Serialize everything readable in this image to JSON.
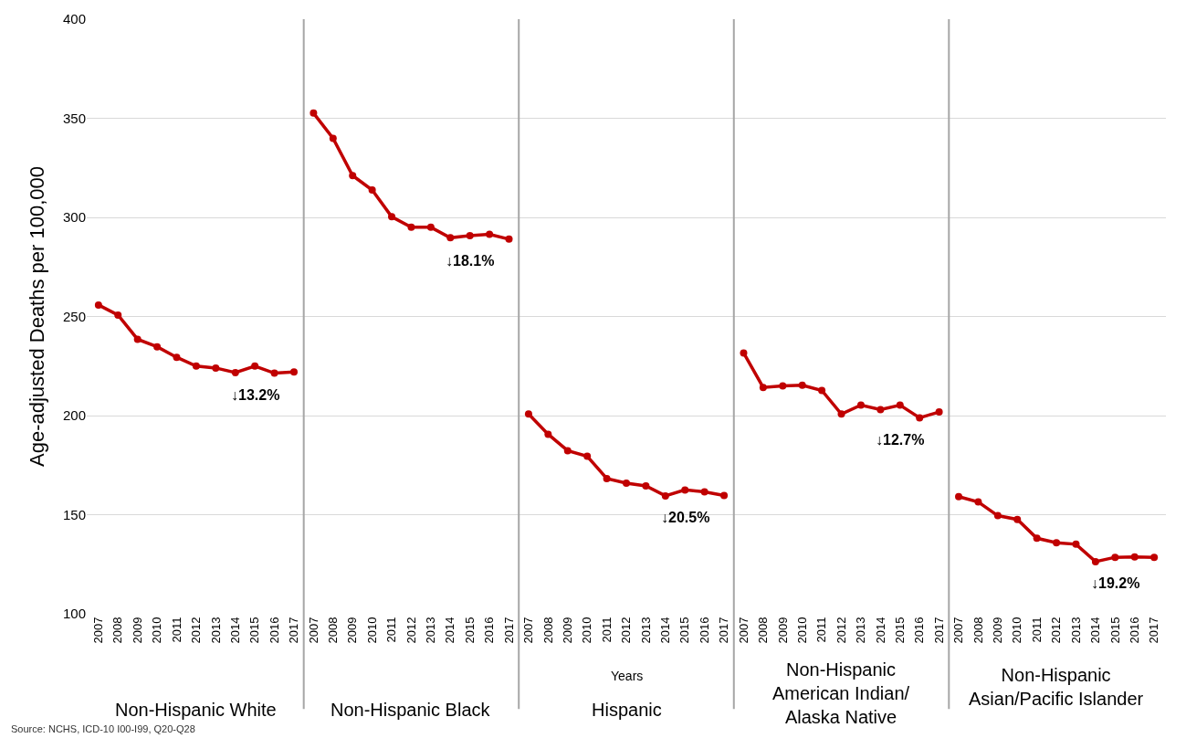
{
  "chart_data": {
    "type": "line",
    "ylabel": "Age-adjusted Deaths per 100,000",
    "categories": [
      "2007",
      "2008",
      "2009",
      "2010",
      "2011",
      "2012",
      "2013",
      "2014",
      "2015",
      "2016",
      "2017",
      "2007",
      "2008",
      "2009",
      "2010",
      "2011",
      "2012",
      "2013",
      "2014",
      "2015",
      "2016",
      "2017",
      "2007",
      "2008",
      "2009",
      "2010",
      "2011",
      "2012",
      "2013",
      "2014",
      "2015",
      "2016",
      "2017",
      "2007",
      "2008",
      "2009",
      "2010",
      "2011",
      "2012",
      "2013",
      "2014",
      "2015",
      "2016",
      "2017",
      "2007",
      "2008",
      "2009",
      "2010",
      "2011",
      "2012",
      "2013",
      "2014",
      "2015",
      "2016",
      "2017"
    ],
    "series": [
      {
        "color": "#c00000",
        "values": [
          255.8,
          250.7,
          238.5,
          234.7,
          229.4,
          225,
          224,
          221.7,
          225,
          221.4,
          222,
          null,
          null,
          null,
          null,
          null,
          null,
          null,
          null,
          null,
          null,
          null,
          null,
          null,
          null,
          null,
          null,
          null,
          null,
          null,
          null,
          null,
          null,
          null,
          null,
          null,
          null,
          null,
          null,
          null,
          null,
          null,
          null,
          null,
          null,
          null,
          null,
          null,
          null,
          null,
          null,
          null,
          null,
          null,
          null
        ]
      },
      {
        "color": "#c00000",
        "values": [
          null,
          null,
          null,
          null,
          null,
          null,
          null,
          null,
          null,
          null,
          null,
          352.6,
          339.9,
          321.1,
          313.8,
          300.3,
          295,
          295,
          289.7,
          290.8,
          291.5,
          289,
          null,
          null,
          null,
          null,
          null,
          null,
          null,
          null,
          null,
          null,
          null,
          null,
          null,
          null,
          null,
          null,
          null,
          null,
          null,
          null,
          null,
          null,
          null,
          null,
          null,
          null,
          null,
          null,
          null,
          null,
          null,
          null,
          null
        ]
      },
      {
        "color": "#c00000",
        "values": [
          null,
          null,
          null,
          null,
          null,
          null,
          null,
          null,
          null,
          null,
          null,
          null,
          null,
          null,
          null,
          null,
          null,
          null,
          null,
          null,
          null,
          null,
          200.8,
          190.6,
          182.3,
          179.5,
          168.2,
          165.9,
          164.5,
          159.5,
          162.5,
          161.5,
          159.7,
          null,
          null,
          null,
          null,
          null,
          null,
          null,
          null,
          null,
          null,
          null,
          null,
          null,
          null,
          null,
          null,
          null,
          null,
          null,
          null,
          null,
          null
        ]
      },
      {
        "color": "#c00000",
        "values": [
          null,
          null,
          null,
          null,
          null,
          null,
          null,
          null,
          null,
          null,
          null,
          null,
          null,
          null,
          null,
          null,
          null,
          null,
          null,
          null,
          null,
          null,
          null,
          null,
          null,
          null,
          null,
          null,
          null,
          null,
          null,
          null,
          null,
          231.6,
          214.2,
          215,
          215.3,
          212.7,
          200.8,
          205.3,
          203,
          205.3,
          198.9,
          201.8,
          null,
          null,
          null,
          null,
          null,
          null,
          null,
          null,
          null,
          null,
          null
        ]
      },
      {
        "color": "#c00000",
        "values": [
          null,
          null,
          null,
          null,
          null,
          null,
          null,
          null,
          null,
          null,
          null,
          null,
          null,
          null,
          null,
          null,
          null,
          null,
          null,
          null,
          null,
          null,
          null,
          null,
          null,
          null,
          null,
          null,
          null,
          null,
          null,
          null,
          null,
          null,
          null,
          null,
          null,
          null,
          null,
          null,
          null,
          null,
          null,
          null,
          159.1,
          156.4,
          149.5,
          147.6,
          138.1,
          135.8,
          135.1,
          126.3,
          128.5,
          128.7,
          128.5
        ]
      }
    ],
    "annotations": [
      "Non-Hispanic White",
      "Non-Hispanic Black",
      "Hispanic",
      "Non-Hispanic\nAmerican Indian/\nAlaska Native",
      "Non-Hispanic\nAsian/Pacific Islander",
      "Years",
      "↓13.2%",
      "↓18.1%",
      "↓20.5%",
      "↓12.7%",
      "↓19.2%",
      "Source: NCHS, ICD-10 I00-I99, Q20-Q28"
    ],
    "ylim": [
      100,
      400
    ],
    "yticks": [
      100,
      150,
      200,
      250,
      300,
      350,
      400
    ],
    "grid": "y",
    "marker": "circle",
    "line_style": "solid"
  }
}
